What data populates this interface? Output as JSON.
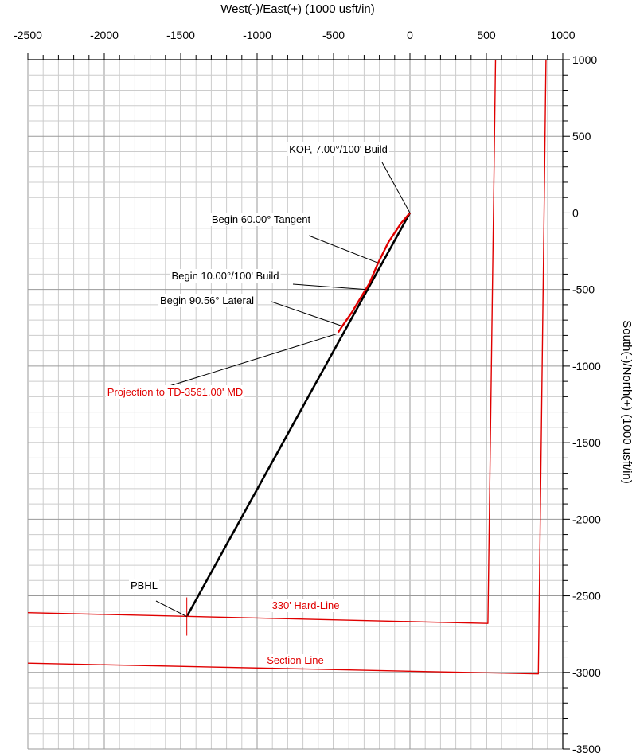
{
  "chart_data": {
    "type": "line",
    "xlabel": "West(-)/East(+) (1000 usft/in)",
    "ylabel": "South(-)/North(+) (1000 usft/in)",
    "xlim": [
      -2500,
      1000
    ],
    "ylim": [
      -3500,
      1000
    ],
    "x_ticks": [
      -2500,
      -2000,
      -1500,
      -1000,
      -500,
      0,
      500,
      1000
    ],
    "y_ticks": [
      1000,
      500,
      0,
      -500,
      -1000,
      -1500,
      -2000,
      -2500,
      -3000,
      -3500
    ],
    "x_tick_labels": [
      "-2500",
      "-2000",
      "-1500",
      "-1000",
      "-500",
      "0",
      "500",
      "1000"
    ],
    "y_tick_labels": [
      "1000",
      "500",
      "0",
      "-500",
      "-1000",
      "-1500",
      "-2000",
      "-2500",
      "-3000",
      "-3500"
    ],
    "grid": true,
    "series": [
      {
        "role": "well path",
        "color": "#000000",
        "x": [
          0,
          -1460
        ],
        "y": [
          0,
          -2635
        ]
      },
      {
        "role": "actual survey",
        "color": "#e00000",
        "x": [
          0,
          -60,
          -140,
          -210,
          -265,
          -320,
          -380,
          -440,
          -470
        ],
        "y": [
          0,
          -70,
          -190,
          -330,
          -460,
          -550,
          -650,
          -735,
          -780
        ]
      },
      {
        "role": "330' Hard-Line",
        "color": "#e00000",
        "x": [
          -2500,
          510,
          560
        ],
        "y": [
          -2610,
          -2680,
          1000
        ]
      },
      {
        "role": "Section Line",
        "color": "#e00000",
        "x": [
          -2500,
          840,
          890
        ],
        "y": [
          -2940,
          -3010,
          1000
        ]
      }
    ],
    "annotations": [
      {
        "text": "KOP, 7.00°/100' Build",
        "color": "#000000",
        "x": 0,
        "y": 0
      },
      {
        "text": "Begin 60.00° Tangent",
        "color": "#000000",
        "x": -200,
        "y": -330
      },
      {
        "text": "Begin 10.00°/100' Build",
        "color": "#000000",
        "x": -290,
        "y": -500
      },
      {
        "text": "Begin 90.56° Lateral",
        "color": "#000000",
        "x": -440,
        "y": -740
      },
      {
        "text": "Projection to TD-3561.00' MD",
        "color": "#e00000",
        "x": -480,
        "y": -790
      },
      {
        "text": "PBHL",
        "color": "#000000",
        "x": -1460,
        "y": -2635
      },
      {
        "text": "330' Hard-Line",
        "color": "#e00000",
        "x": -890,
        "y": -2650
      },
      {
        "text": "Section Line",
        "color": "#e00000",
        "x": -890,
        "y": -2980
      }
    ]
  }
}
